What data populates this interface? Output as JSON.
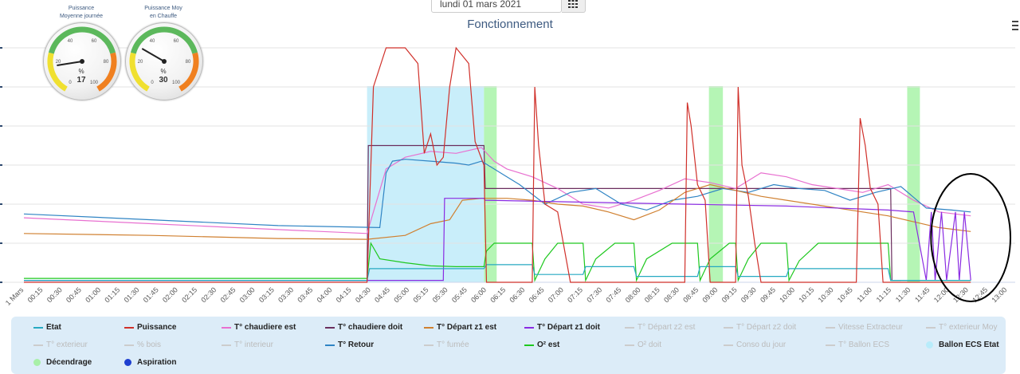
{
  "date_picker": {
    "value": "lundi 01 mars 2021",
    "icon": "calendar-icon"
  },
  "title": "Fonctionnement",
  "menu_icon": "hamburger-icon",
  "gauges": [
    {
      "title": "Puissance\nMoyenne journée",
      "value": 17,
      "unit": "%",
      "min": 0,
      "max": 100,
      "ticks": [
        0,
        20,
        40,
        60,
        80,
        100
      ]
    },
    {
      "title": "Puissance Moy\nen Chauffe",
      "value": 30,
      "unit": "%",
      "min": 0,
      "max": 100,
      "ticks": [
        0,
        20,
        40,
        60,
        80,
        100
      ]
    }
  ],
  "chart_data": {
    "type": "line",
    "title": "Fonctionnement",
    "x_ticks": [
      "1 Mars",
      "00:15",
      "00:30",
      "00:45",
      "01:00",
      "01:15",
      "01:30",
      "01:45",
      "02:00",
      "02:15",
      "02:30",
      "02:45",
      "03:00",
      "03:15",
      "03:30",
      "03:45",
      "04:00",
      "04:15",
      "04:30",
      "04:45",
      "05:00",
      "05:15",
      "05:30",
      "05:45",
      "06:00",
      "06:15",
      "06:30",
      "06:45",
      "07:00",
      "07:15",
      "07:30",
      "07:45",
      "08:00",
      "08:15",
      "08:30",
      "08:45",
      "09:00",
      "09:15",
      "09:30",
      "09:45",
      "10:00",
      "10:15",
      "10:30",
      "10:45",
      "11:00",
      "11:15",
      "11:30",
      "11:45",
      "12:00",
      "12:30",
      "12:45",
      "13:00"
    ],
    "x_range_minutes": [
      0,
      780
    ],
    "y_range": [
      0,
      600
    ],
    "y_gridlines": [
      0,
      100,
      200,
      300,
      400,
      500,
      600
    ],
    "y_axis_labels_visible": false,
    "bands": [
      {
        "series": "Ballon ECS Etat",
        "from": 270,
        "to": 362,
        "color": "#c9eefa"
      },
      {
        "series": "Décendrage",
        "from": 362,
        "to": 372,
        "color": "#b5f5b5"
      },
      {
        "series": "Décendrage",
        "from": 539,
        "to": 550,
        "color": "#b5f5b5"
      },
      {
        "series": "Décendrage",
        "from": 695,
        "to": 705,
        "color": "#b5f5b5"
      }
    ],
    "series": [
      {
        "name": "T° chaudiere doit",
        "color": "#6b2e5e",
        "points": [
          [
            0,
            5
          ],
          [
            270,
            5
          ],
          [
            271,
            350
          ],
          [
            362,
            350
          ],
          [
            363,
            240
          ],
          [
            682,
            240
          ],
          [
            683,
            5
          ],
          [
            690,
            5
          ]
        ]
      },
      {
        "name": "T° chaudiere est",
        "color": "#e870d0",
        "points": [
          [
            0,
            165
          ],
          [
            100,
            150
          ],
          [
            200,
            135
          ],
          [
            270,
            125
          ],
          [
            285,
            290
          ],
          [
            300,
            320
          ],
          [
            320,
            335
          ],
          [
            340,
            330
          ],
          [
            360,
            345
          ],
          [
            370,
            310
          ],
          [
            380,
            290
          ],
          [
            400,
            270
          ],
          [
            420,
            240
          ],
          [
            440,
            200
          ],
          [
            460,
            190
          ],
          [
            480,
            210
          ],
          [
            500,
            235
          ],
          [
            520,
            265
          ],
          [
            540,
            255
          ],
          [
            560,
            240
          ],
          [
            580,
            280
          ],
          [
            600,
            270
          ],
          [
            620,
            250
          ],
          [
            640,
            240
          ],
          [
            660,
            230
          ],
          [
            680,
            250
          ],
          [
            700,
            210
          ],
          [
            720,
            180
          ],
          [
            745,
            170
          ]
        ]
      },
      {
        "name": "T° Retour",
        "color": "#2f84c4",
        "points": [
          [
            0,
            175
          ],
          [
            100,
            160
          ],
          [
            200,
            145
          ],
          [
            280,
            140
          ],
          [
            285,
            280
          ],
          [
            290,
            310
          ],
          [
            300,
            315
          ],
          [
            320,
            310
          ],
          [
            340,
            305
          ],
          [
            350,
            300
          ],
          [
            360,
            310
          ],
          [
            370,
            290
          ],
          [
            390,
            250
          ],
          [
            410,
            200
          ],
          [
            430,
            230
          ],
          [
            450,
            240
          ],
          [
            470,
            200
          ],
          [
            490,
            185
          ],
          [
            510,
            210
          ],
          [
            530,
            220
          ],
          [
            550,
            240
          ],
          [
            570,
            230
          ],
          [
            590,
            250
          ],
          [
            610,
            240
          ],
          [
            630,
            235
          ],
          [
            650,
            210
          ],
          [
            670,
            230
          ],
          [
            690,
            245
          ],
          [
            710,
            190
          ],
          [
            730,
            185
          ],
          [
            745,
            180
          ]
        ]
      },
      {
        "name": "T° Départ z1 est",
        "color": "#d08030",
        "points": [
          [
            0,
            125
          ],
          [
            100,
            120
          ],
          [
            200,
            112
          ],
          [
            270,
            110
          ],
          [
            300,
            120
          ],
          [
            320,
            150
          ],
          [
            335,
            160
          ],
          [
            345,
            210
          ],
          [
            360,
            215
          ],
          [
            380,
            215
          ],
          [
            400,
            210
          ],
          [
            420,
            200
          ],
          [
            440,
            195
          ],
          [
            460,
            180
          ],
          [
            480,
            160
          ],
          [
            500,
            185
          ],
          [
            520,
            230
          ],
          [
            540,
            250
          ],
          [
            560,
            235
          ],
          [
            580,
            220
          ],
          [
            600,
            210
          ],
          [
            620,
            200
          ],
          [
            640,
            190
          ],
          [
            660,
            180
          ],
          [
            680,
            170
          ],
          [
            700,
            155
          ],
          [
            720,
            140
          ],
          [
            745,
            130
          ]
        ]
      },
      {
        "name": "T° Départ z1 doit",
        "color": "#8a2be2",
        "points": [
          [
            0,
            5
          ],
          [
            330,
            5
          ],
          [
            331,
            215
          ],
          [
            362,
            215
          ],
          [
            363,
            210
          ],
          [
            520,
            200
          ],
          [
            600,
            195
          ],
          [
            680,
            185
          ],
          [
            700,
            180
          ],
          [
            710,
            5
          ],
          [
            714,
            180
          ],
          [
            717,
            5
          ],
          [
            722,
            180
          ],
          [
            726,
            5
          ],
          [
            733,
            180
          ],
          [
            736,
            5
          ],
          [
            740,
            180
          ],
          [
            745,
            5
          ]
        ]
      },
      {
        "name": "O² est",
        "color": "#1ec81e",
        "points": [
          [
            0,
            10
          ],
          [
            270,
            10
          ],
          [
            273,
            100
          ],
          [
            280,
            60
          ],
          [
            300,
            50
          ],
          [
            320,
            42
          ],
          [
            340,
            40
          ],
          [
            362,
            40
          ],
          [
            364,
            80
          ],
          [
            370,
            100
          ],
          [
            400,
            100
          ],
          [
            402,
            5
          ],
          [
            410,
            60
          ],
          [
            420,
            100
          ],
          [
            440,
            100
          ],
          [
            442,
            5
          ],
          [
            450,
            60
          ],
          [
            465,
            100
          ],
          [
            480,
            100
          ],
          [
            482,
            5
          ],
          [
            490,
            60
          ],
          [
            510,
            100
          ],
          [
            530,
            100
          ],
          [
            532,
            5
          ],
          [
            540,
            60
          ],
          [
            555,
            100
          ],
          [
            560,
            100
          ],
          [
            562,
            5
          ],
          [
            570,
            60
          ],
          [
            580,
            100
          ],
          [
            600,
            100
          ],
          [
            602,
            5
          ],
          [
            610,
            55
          ],
          [
            625,
            100
          ],
          [
            680,
            100
          ],
          [
            682,
            5
          ],
          [
            745,
            5
          ]
        ]
      },
      {
        "name": "Etat",
        "color": "#26a9c2",
        "points": [
          [
            0,
            5
          ],
          [
            270,
            5
          ],
          [
            272,
            35
          ],
          [
            362,
            35
          ],
          [
            364,
            45
          ],
          [
            400,
            45
          ],
          [
            402,
            20
          ],
          [
            440,
            20
          ],
          [
            442,
            40
          ],
          [
            480,
            40
          ],
          [
            482,
            15
          ],
          [
            530,
            15
          ],
          [
            532,
            40
          ],
          [
            560,
            40
          ],
          [
            562,
            15
          ],
          [
            600,
            15
          ],
          [
            602,
            35
          ],
          [
            680,
            35
          ],
          [
            682,
            5
          ],
          [
            745,
            5
          ]
        ]
      },
      {
        "name": "Puissance",
        "color": "#d0302a",
        "points": [
          [
            0,
            0
          ],
          [
            270,
            0
          ],
          [
            275,
            500
          ],
          [
            285,
            600
          ],
          [
            300,
            600
          ],
          [
            310,
            560
          ],
          [
            315,
            330
          ],
          [
            320,
            380
          ],
          [
            325,
            300
          ],
          [
            330,
            320
          ],
          [
            335,
            500
          ],
          [
            340,
            600
          ],
          [
            350,
            560
          ],
          [
            355,
            360
          ],
          [
            362,
            300
          ],
          [
            364,
            0
          ],
          [
            400,
            0
          ],
          [
            402,
            500
          ],
          [
            405,
            350
          ],
          [
            410,
            200
          ],
          [
            420,
            180
          ],
          [
            430,
            0
          ],
          [
            520,
            0
          ],
          [
            522,
            460
          ],
          [
            525,
            400
          ],
          [
            530,
            250
          ],
          [
            536,
            210
          ],
          [
            540,
            0
          ],
          [
            560,
            0
          ],
          [
            562,
            500
          ],
          [
            565,
            300
          ],
          [
            570,
            220
          ],
          [
            575,
            100
          ],
          [
            580,
            0
          ],
          [
            655,
            0
          ],
          [
            658,
            420
          ],
          [
            662,
            350
          ],
          [
            666,
            240
          ],
          [
            672,
            200
          ],
          [
            676,
            0
          ],
          [
            745,
            0
          ]
        ]
      }
    ],
    "legend": {
      "placement": "bottom",
      "items": [
        {
          "name": "Etat",
          "kind": "line",
          "color": "#26a9c2",
          "active": true
        },
        {
          "name": "Puissance",
          "kind": "line",
          "color": "#d0302a",
          "active": true
        },
        {
          "name": "T° chaudiere est",
          "kind": "line",
          "color": "#e870d0",
          "active": true
        },
        {
          "name": "T° chaudiere doit",
          "kind": "line",
          "color": "#6b2e5e",
          "active": true
        },
        {
          "name": "T° Départ z1 est",
          "kind": "line",
          "color": "#d08030",
          "active": true
        },
        {
          "name": "T° Départ z1 doit",
          "kind": "line",
          "color": "#8a2be2",
          "active": true
        },
        {
          "name": "T° Départ z2 est",
          "kind": "line",
          "color": "#cccccc",
          "active": false
        },
        {
          "name": "T° Départ z2 doit",
          "kind": "line",
          "color": "#cccccc",
          "active": false
        },
        {
          "name": "Vitesse Extracteur",
          "kind": "line",
          "color": "#cccccc",
          "active": false
        },
        {
          "name": "T° exterieur Moy",
          "kind": "line",
          "color": "#cccccc",
          "active": false
        },
        {
          "name": "T° exterieur",
          "kind": "line",
          "color": "#cccccc",
          "active": false
        },
        {
          "name": "% bois",
          "kind": "line",
          "color": "#cccccc",
          "active": false
        },
        {
          "name": "T° interieur",
          "kind": "line",
          "color": "#cccccc",
          "active": false
        },
        {
          "name": "T° Retour",
          "kind": "line",
          "color": "#2f84c4",
          "active": true
        },
        {
          "name": "T° fumée",
          "kind": "line",
          "color": "#cccccc",
          "active": false
        },
        {
          "name": "O² est",
          "kind": "line",
          "color": "#1ec81e",
          "active": true
        },
        {
          "name": "O² doit",
          "kind": "line",
          "color": "#cccccc",
          "active": false
        },
        {
          "name": "Conso du jour",
          "kind": "line",
          "color": "#cccccc",
          "active": false
        },
        {
          "name": "T° Ballon ECS",
          "kind": "line",
          "color": "#cccccc",
          "active": false
        },
        {
          "name": "Ballon ECS Etat",
          "kind": "dot",
          "color": "#b8ecfb",
          "active": true
        },
        {
          "name": "Décendrage",
          "kind": "dot",
          "color": "#a8f0a8",
          "active": true
        },
        {
          "name": "Aspiration",
          "kind": "dot",
          "color": "#1e3fd0",
          "active": true
        }
      ]
    },
    "annotation": {
      "shape": "ellipse",
      "color": "#000000",
      "x_from": 720,
      "x_to": 780
    }
  }
}
